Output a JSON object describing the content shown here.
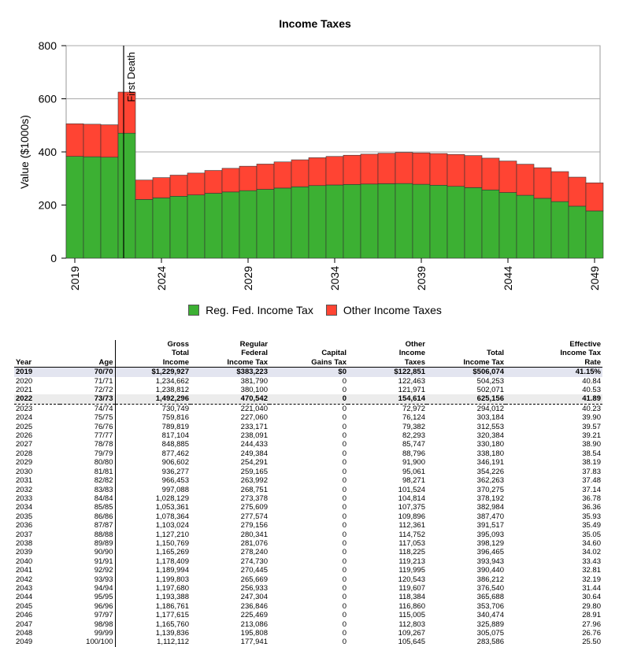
{
  "chart_data": {
    "type": "bar",
    "stacked": true,
    "title": "Income Taxes",
    "ylabel": "Value ($1000s)",
    "xlabel": "",
    "ylim": [
      0,
      800
    ],
    "yticks": [
      "0",
      "200",
      "400",
      "600",
      "800"
    ],
    "xticks": [
      "2019",
      "2024",
      "2029",
      "2034",
      "2039",
      "2044",
      "2049"
    ],
    "grid": true,
    "legend_position": "bottom",
    "annotation": {
      "label": "First Death",
      "x": 2022
    },
    "x": [
      2019,
      2020,
      2021,
      2022,
      2023,
      2024,
      2025,
      2026,
      2027,
      2028,
      2029,
      2030,
      2031,
      2032,
      2033,
      2034,
      2035,
      2036,
      2037,
      2038,
      2039,
      2040,
      2041,
      2042,
      2043,
      2044,
      2045,
      2046,
      2047,
      2048,
      2049
    ],
    "series": [
      {
        "name": "Reg. Fed. Income Tax",
        "color": "#3cb033",
        "values": [
          383.223,
          381.79,
          380.1,
          470.542,
          221.04,
          227.06,
          233.171,
          238.091,
          244.433,
          249.384,
          254.291,
          259.165,
          263.992,
          268.751,
          273.378,
          275.609,
          277.574,
          279.156,
          280.341,
          281.076,
          278.24,
          274.73,
          270.445,
          265.669,
          256.933,
          247.304,
          236.846,
          225.469,
          213.086,
          195.808,
          177.941
        ]
      },
      {
        "name": "Other Income Taxes",
        "color": "#ff4433",
        "values": [
          122.851,
          122.463,
          121.971,
          154.614,
          72.972,
          76.124,
          79.382,
          82.293,
          85.747,
          88.796,
          91.9,
          95.061,
          98.271,
          101.524,
          104.814,
          107.375,
          109.896,
          112.361,
          114.752,
          117.053,
          118.225,
          119.213,
          119.995,
          120.543,
          119.607,
          118.384,
          116.86,
          115.005,
          112.803,
          109.267,
          105.645
        ]
      }
    ]
  },
  "table": {
    "headers": [
      [
        "",
        "",
        "Gross",
        "Regular",
        "",
        "Other",
        "",
        "Effective"
      ],
      [
        "",
        "",
        "Total",
        "Federal",
        "Capital",
        "Income",
        "Total",
        "Income Tax"
      ],
      [
        "Year",
        "Age",
        "Income",
        "Income Tax",
        "Gains Tax",
        "Taxes",
        "Income Tax",
        "Rate"
      ]
    ],
    "rows": [
      [
        "2019",
        "70/70",
        "$1,229,927",
        "$383,223",
        "$0",
        "$122,851",
        "$506,074",
        "41.15%"
      ],
      [
        "2020",
        "71/71",
        "1,234,662",
        "381,790",
        "0",
        "122,463",
        "504,253",
        "40.84"
      ],
      [
        "2021",
        "72/72",
        "1,238,812",
        "380,100",
        "0",
        "121,971",
        "502,071",
        "40.53"
      ],
      [
        "2022",
        "73/73",
        "1,492,296",
        "470,542",
        "0",
        "154,614",
        "625,156",
        "41.89"
      ],
      [
        "2023",
        "74/74",
        "730,749",
        "221,040",
        "0",
        "72,972",
        "294,012",
        "40.23"
      ],
      [
        "2024",
        "75/75",
        "759,816",
        "227,060",
        "0",
        "76,124",
        "303,184",
        "39.90"
      ],
      [
        "2025",
        "76/76",
        "789,819",
        "233,171",
        "0",
        "79,382",
        "312,553",
        "39.57"
      ],
      [
        "2026",
        "77/77",
        "817,104",
        "238,091",
        "0",
        "82,293",
        "320,384",
        "39.21"
      ],
      [
        "2027",
        "78/78",
        "848,885",
        "244,433",
        "0",
        "85,747",
        "330,180",
        "38.90"
      ],
      [
        "2028",
        "79/79",
        "877,462",
        "249,384",
        "0",
        "88,796",
        "338,180",
        "38.54"
      ],
      [
        "2029",
        "80/80",
        "906,602",
        "254,291",
        "0",
        "91,900",
        "346,191",
        "38.19"
      ],
      [
        "2030",
        "81/81",
        "936,277",
        "259,165",
        "0",
        "95,061",
        "354,226",
        "37.83"
      ],
      [
        "2031",
        "82/82",
        "966,453",
        "263,992",
        "0",
        "98,271",
        "362,263",
        "37.48"
      ],
      [
        "2032",
        "83/83",
        "997,088",
        "268,751",
        "0",
        "101,524",
        "370,275",
        "37.14"
      ],
      [
        "2033",
        "84/84",
        "1,028,129",
        "273,378",
        "0",
        "104,814",
        "378,192",
        "36.78"
      ],
      [
        "2034",
        "85/85",
        "1,053,361",
        "275,609",
        "0",
        "107,375",
        "382,984",
        "36.36"
      ],
      [
        "2035",
        "86/86",
        "1,078,364",
        "277,574",
        "0",
        "109,896",
        "387,470",
        "35.93"
      ],
      [
        "2036",
        "87/87",
        "1,103,024",
        "279,156",
        "0",
        "112,361",
        "391,517",
        "35.49"
      ],
      [
        "2037",
        "88/88",
        "1,127,210",
        "280,341",
        "0",
        "114,752",
        "395,093",
        "35.05"
      ],
      [
        "2038",
        "89/89",
        "1,150,769",
        "281,076",
        "0",
        "117,053",
        "398,129",
        "34.60"
      ],
      [
        "2039",
        "90/90",
        "1,165,269",
        "278,240",
        "0",
        "118,225",
        "396,465",
        "34.02"
      ],
      [
        "2040",
        "91/91",
        "1,178,409",
        "274,730",
        "0",
        "119,213",
        "393,943",
        "33.43"
      ],
      [
        "2041",
        "92/92",
        "1,189,994",
        "270,445",
        "0",
        "119,995",
        "390,440",
        "32.81"
      ],
      [
        "2042",
        "93/93",
        "1,199,803",
        "265,669",
        "0",
        "120,543",
        "386,212",
        "32.19"
      ],
      [
        "2043",
        "94/94",
        "1,197,680",
        "256,933",
        "0",
        "119,607",
        "376,540",
        "31.44"
      ],
      [
        "2044",
        "95/95",
        "1,193,388",
        "247,304",
        "0",
        "118,384",
        "365,688",
        "30.64"
      ],
      [
        "2045",
        "96/96",
        "1,186,761",
        "236,846",
        "0",
        "116,860",
        "353,706",
        "29.80"
      ],
      [
        "2046",
        "97/97",
        "1,177,615",
        "225,469",
        "0",
        "115,005",
        "340,474",
        "28.91"
      ],
      [
        "2047",
        "98/98",
        "1,165,760",
        "213,086",
        "0",
        "112,803",
        "325,889",
        "27.96"
      ],
      [
        "2048",
        "99/99",
        "1,139,836",
        "195,808",
        "0",
        "109,267",
        "305,075",
        "26.76"
      ],
      [
        "2049",
        "100/100",
        "1,112,112",
        "177,941",
        "0",
        "105,645",
        "283,586",
        "25.50"
      ]
    ]
  }
}
